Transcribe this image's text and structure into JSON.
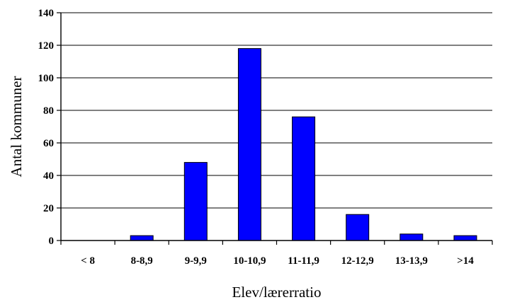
{
  "chart_data": {
    "type": "bar",
    "categories": [
      "< 8",
      "8-8,9",
      "9-9,9",
      "10-10,9",
      "11-11,9",
      "12-12,9",
      "13-13,9",
      ">14"
    ],
    "values": [
      0,
      3,
      48,
      118,
      76,
      16,
      4,
      3
    ],
    "xlabel": "Elev/lærerratio",
    "ylabel": "Antal kommuner",
    "ylim": [
      0,
      140
    ],
    "yticks": [
      0,
      20,
      40,
      60,
      80,
      100,
      120,
      140
    ],
    "grid": true,
    "legend": "none",
    "bar_color": "#0000ff",
    "bar_outline": "#000000"
  }
}
